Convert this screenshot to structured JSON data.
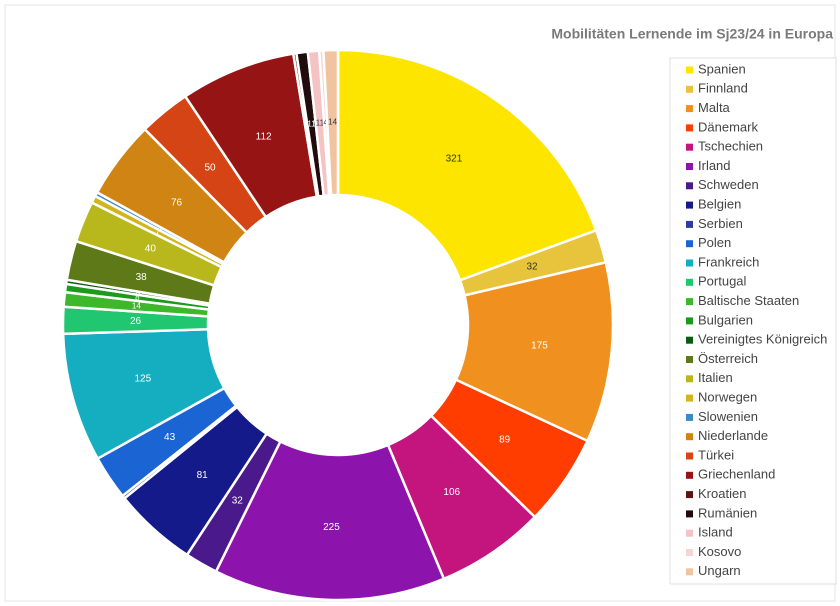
{
  "chart_data": {
    "type": "donut",
    "title": "Mobilitäten Lernende im Sj23/24 in Europa",
    "categories": [
      "Spanien",
      "Finnland",
      "Malta",
      "Dänemark",
      "Tschechien",
      "Irland",
      "Schweden",
      "Belgien",
      "Serbien",
      "Polen",
      "Frankreich",
      "Portugal",
      "Baltische Staaten",
      "Bulgarien",
      "Vereinigtes Königreich",
      "Österreich",
      "Italien",
      "Norwegen",
      "Slowenien",
      "Niederlande",
      "Türkei",
      "Griechenland",
      "Kroatien",
      "Rumänien",
      "Island",
      "Kosovo",
      "Ungarn"
    ],
    "values": [
      321,
      32,
      175,
      89,
      106,
      225,
      32,
      81,
      3,
      43,
      125,
      26,
      14,
      8,
      4,
      38,
      40,
      7,
      4,
      76,
      50,
      112,
      3,
      11,
      11,
      4,
      14
    ],
    "colors": [
      "#fde500",
      "#e8c43c",
      "#f0901e",
      "#ff3d00",
      "#c4157e",
      "#8c14ac",
      "#4a1a8c",
      "#141a8a",
      "#2a3f9c",
      "#1a64d4",
      "#14aec0",
      "#20c670",
      "#3cb82a",
      "#1a9c1a",
      "#0c5a14",
      "#5e7a18",
      "#b8b81c",
      "#d4b41c",
      "#3a8cc4",
      "#d08414",
      "#d44414",
      "#961414",
      "#5a1414",
      "#200c0c",
      "#f4c4c4",
      "#f8d4d4",
      "#f0c4a0"
    ],
    "legend": "right"
  }
}
